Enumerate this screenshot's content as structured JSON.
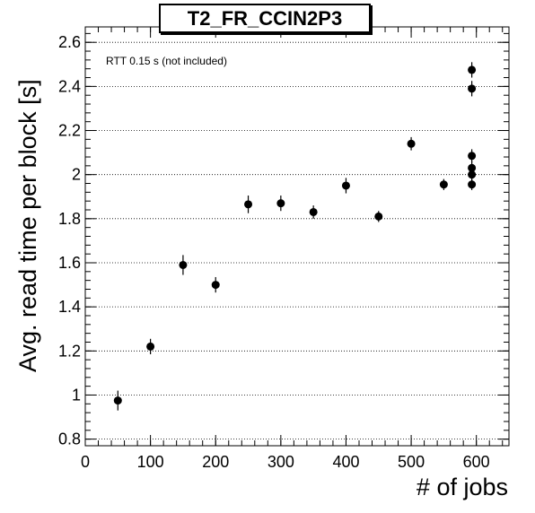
{
  "chart_data": {
    "type": "scatter",
    "title": "T2_FR_CCIN2P3",
    "annotation": "RTT 0.15 s (not included)",
    "xlabel": "# of jobs",
    "ylabel": "Avg. read time per block [s]",
    "xlim": [
      0,
      650
    ],
    "ylim": [
      0.77,
      2.67
    ],
    "x_ticks": [
      0,
      100,
      200,
      300,
      400,
      500,
      600
    ],
    "y_ticks": [
      0.8,
      1,
      1.2,
      1.4,
      1.6,
      1.8,
      2,
      2.2,
      2.4,
      2.6
    ],
    "x_tick_labels": [
      "0",
      "100",
      "200",
      "300",
      "400",
      "500",
      "600"
    ],
    "y_tick_labels": [
      "0.8",
      "1",
      "1.2",
      "1.4",
      "1.6",
      "1.8",
      "2",
      "2.2",
      "2.4",
      "2.6"
    ],
    "grid": "horizontal dotted",
    "marker_color": "#000000",
    "points": [
      {
        "x": 50,
        "y": 0.975,
        "err": 0.045
      },
      {
        "x": 100,
        "y": 1.22,
        "err": 0.035
      },
      {
        "x": 150,
        "y": 1.59,
        "err": 0.045
      },
      {
        "x": 200,
        "y": 1.5,
        "err": 0.035
      },
      {
        "x": 250,
        "y": 1.865,
        "err": 0.04
      },
      {
        "x": 300,
        "y": 1.87,
        "err": 0.035
      },
      {
        "x": 350,
        "y": 1.83,
        "err": 0.03
      },
      {
        "x": 400,
        "y": 1.95,
        "err": 0.035
      },
      {
        "x": 450,
        "y": 1.81,
        "err": 0.025
      },
      {
        "x": 500,
        "y": 2.14,
        "err": 0.03
      },
      {
        "x": 550,
        "y": 1.955,
        "err": 0.025
      },
      {
        "x": 593,
        "y": 2.475,
        "err": 0.035
      },
      {
        "x": 593,
        "y": 2.39,
        "err": 0.035
      },
      {
        "x": 593,
        "y": 2.085,
        "err": 0.03
      },
      {
        "x": 593,
        "y": 2.03,
        "err": 0.03
      },
      {
        "x": 593,
        "y": 2.0,
        "err": 0.03
      },
      {
        "x": 593,
        "y": 1.955,
        "err": 0.025
      }
    ]
  }
}
